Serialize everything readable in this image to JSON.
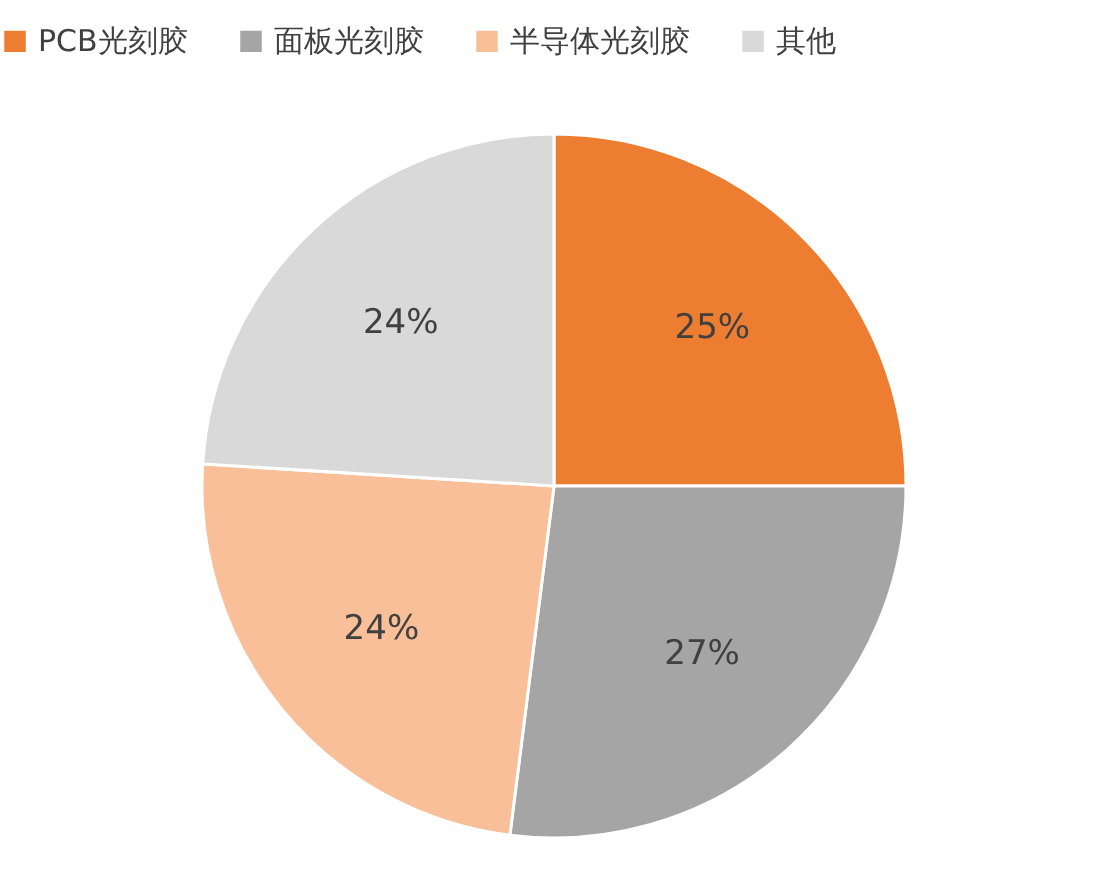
{
  "chart_data": {
    "type": "pie",
    "categories": [
      "PCB光刻胶",
      "面板光刻胶",
      "半导体光刻胶",
      "其他"
    ],
    "values": [
      25,
      27,
      24,
      24
    ],
    "colors": [
      "#ed7d31",
      "#a5a5a5",
      "#f8bf98",
      "#d9d9d9"
    ],
    "value_labels": [
      "25%",
      "27%",
      "24%",
      "24%"
    ],
    "legend": "top"
  }
}
